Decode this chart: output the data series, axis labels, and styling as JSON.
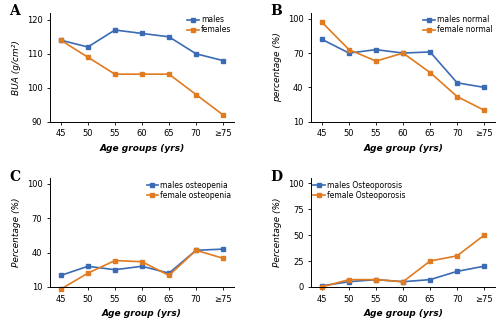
{
  "age_labels": [
    "45",
    "50",
    "55",
    "60",
    "65",
    "70",
    "≥75"
  ],
  "A": {
    "males": [
      114,
      112,
      117,
      116,
      115,
      110,
      108
    ],
    "females": [
      114,
      109,
      104,
      104,
      104,
      98,
      92
    ],
    "ylabel": "BUA (g/cm²)",
    "xlabel": "Age groups (yrs)",
    "ylim": [
      90,
      122
    ],
    "yticks": [
      90,
      100,
      110,
      120
    ],
    "legend_males": "males",
    "legend_females": "females",
    "label": "A",
    "legend_loc": "upper right"
  },
  "B": {
    "males": [
      82,
      70,
      73,
      70,
      71,
      44,
      40
    ],
    "females": [
      97,
      73,
      63,
      70,
      53,
      32,
      20
    ],
    "ylabel": "percentage (%)",
    "xlabel": "Age group (yrs)",
    "ylim": [
      10,
      105
    ],
    "yticks": [
      10,
      40,
      70,
      100
    ],
    "legend_males": "males normal",
    "legend_females": "female normal",
    "label": "B",
    "legend_loc": "upper right"
  },
  "C": {
    "males": [
      20,
      28,
      25,
      28,
      22,
      42,
      43
    ],
    "females": [
      8,
      22,
      33,
      32,
      20,
      42,
      35
    ],
    "ylabel": "Percentage (%)",
    "xlabel": "Age group (yrs)",
    "ylim": [
      10,
      105
    ],
    "yticks": [
      10,
      40,
      70,
      100
    ],
    "legend_males": "males osteopenia",
    "legend_females": "female osteopenia",
    "label": "C",
    "legend_loc": "upper right"
  },
  "D": {
    "males": [
      1,
      5,
      7,
      5,
      7,
      15,
      20
    ],
    "females": [
      0,
      7,
      7,
      5,
      25,
      30,
      50
    ],
    "ylabel": "Percentage (%)",
    "xlabel": "Age group (yrs)",
    "ylim": [
      0,
      105
    ],
    "yticks": [
      0,
      25,
      50,
      75,
      100
    ],
    "legend_males": "males Osteoporosis",
    "legend_females": "female Osteoporosis",
    "label": "D",
    "legend_loc": "upper left"
  },
  "blue_color": "#3B6BB5",
  "orange_color": "#E07B20",
  "marker": "s",
  "markersize": 3.5,
  "linewidth": 1.2,
  "fontsize_label": 6.5,
  "fontsize_tick": 6,
  "fontsize_legend": 5.5,
  "fontsize_panel": 10
}
